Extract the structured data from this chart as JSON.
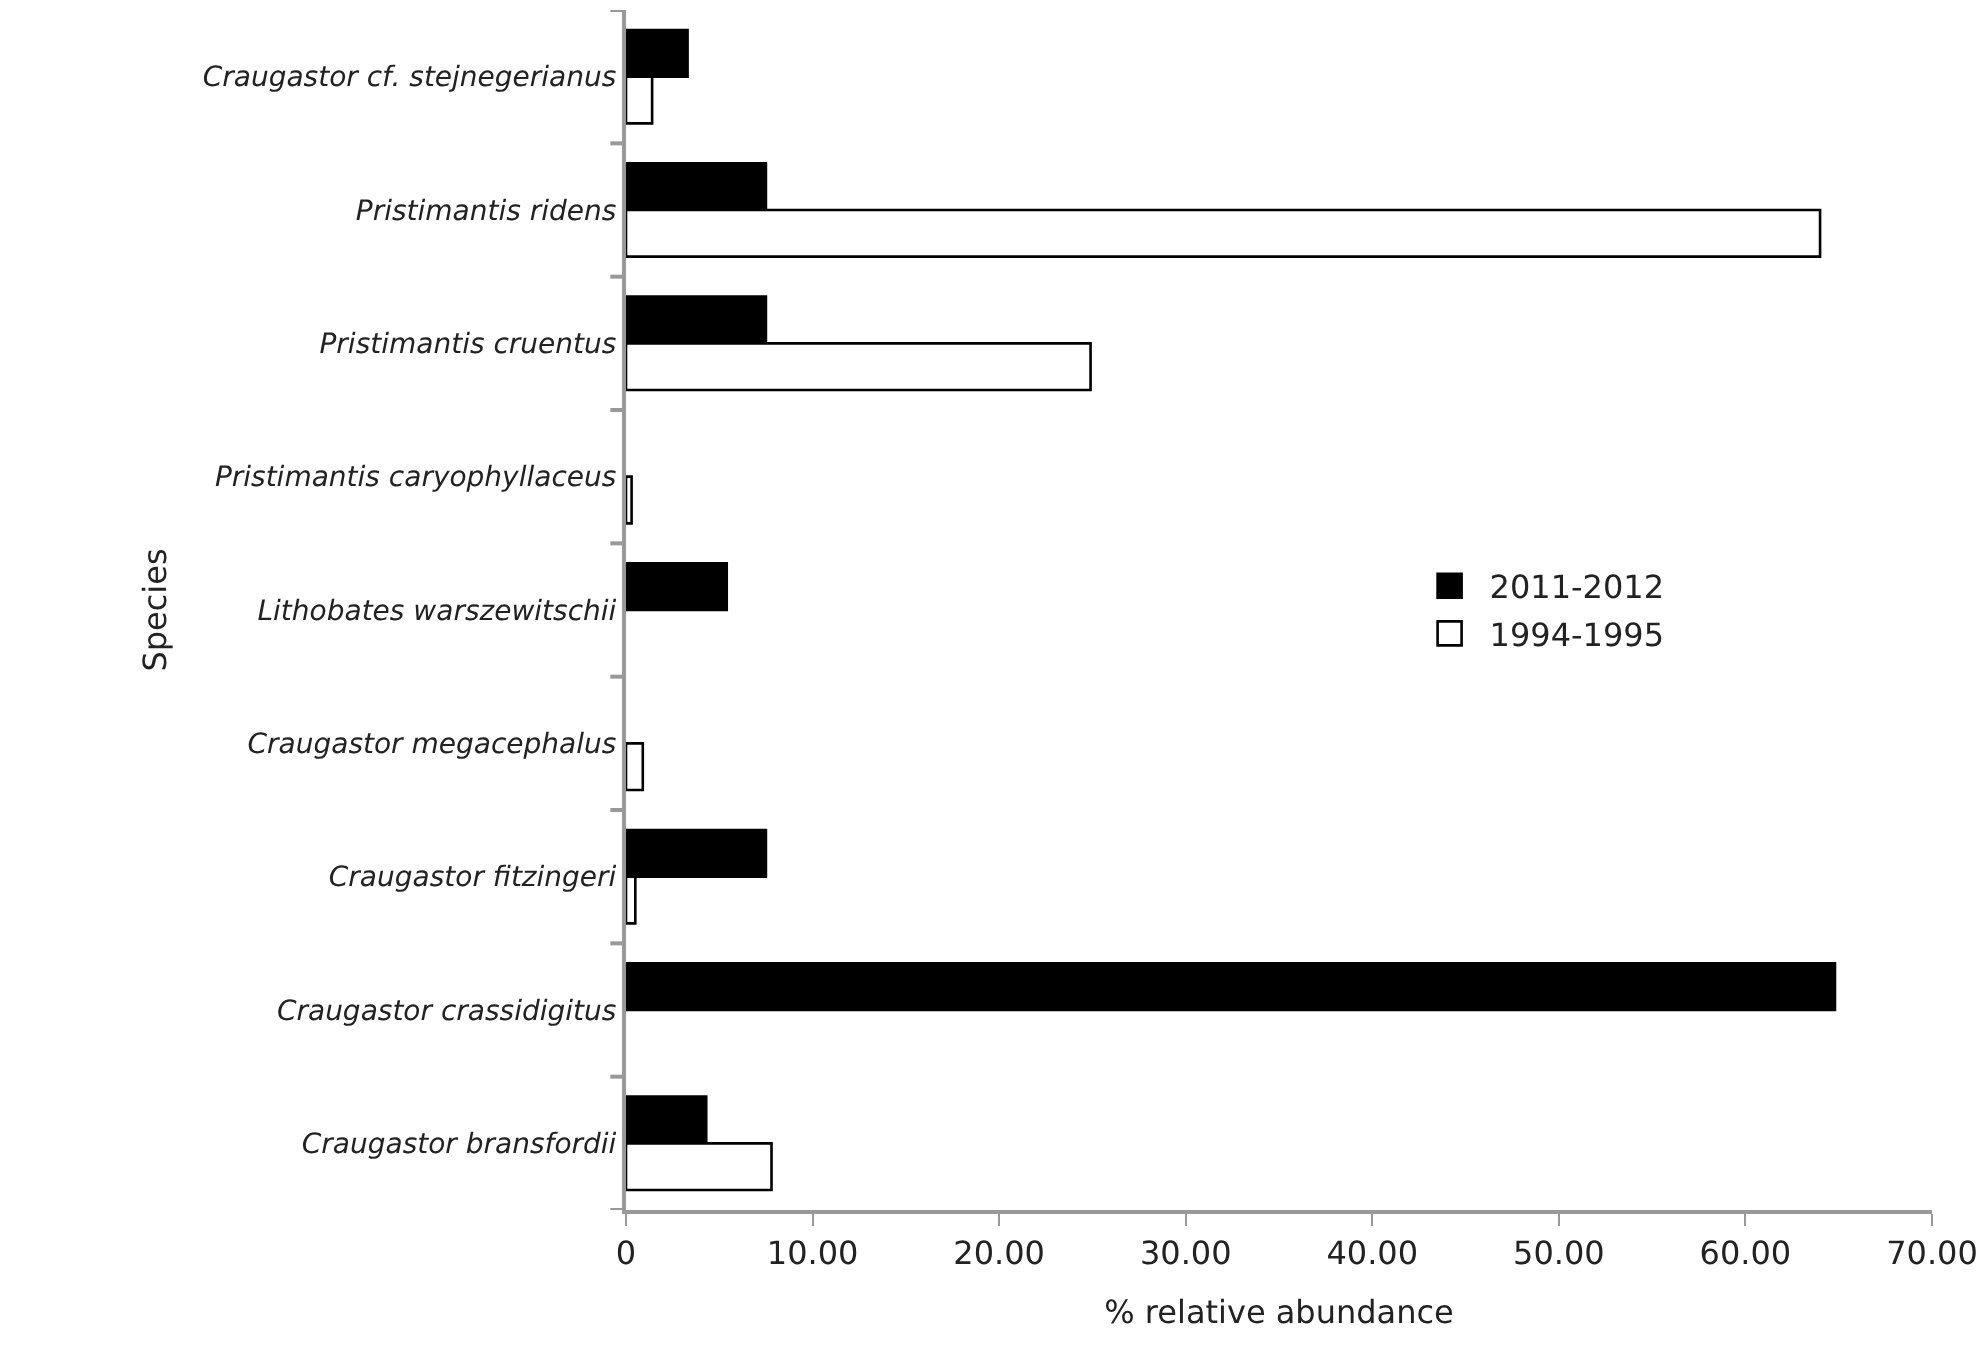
{
  "chart_data": {
    "type": "bar",
    "orientation": "horizontal",
    "xlabel": "% relative abundance",
    "ylabel": "Species",
    "categories": [
      "Craugastor cf. stejnegerianus",
      "Pristimantis ridens",
      "Pristimantis cruentus",
      "Pristimantis caryophyllaceus",
      "Lithobates warszewitschii",
      "Craugastor megacephalus",
      "Craugastor fitzingeri",
      "Craugastor crassidigitus",
      "Craugastor bransfordii"
    ],
    "series": [
      {
        "name": "2011-2012",
        "color": "#000000",
        "values": [
          3.3,
          7.5,
          7.5,
          null,
          5.4,
          null,
          7.5,
          64.8,
          4.3
        ]
      },
      {
        "name": "1994-1995",
        "color": "#ffffff",
        "values": [
          1.4,
          64.0,
          24.9,
          0.3,
          null,
          0.9,
          0.5,
          null,
          7.8
        ]
      }
    ],
    "xlim": [
      0,
      70
    ],
    "xticks": [
      {
        "value": 0,
        "label": "0"
      },
      {
        "value": 10,
        "label": "10.00"
      },
      {
        "value": 20,
        "label": "20.00"
      },
      {
        "value": 30,
        "label": "30.00"
      },
      {
        "value": 40,
        "label": "40.00"
      },
      {
        "value": 50,
        "label": "50.00"
      },
      {
        "value": 60,
        "label": "60.00"
      },
      {
        "value": 70,
        "label": "70.00"
      }
    ],
    "legend": "right"
  }
}
